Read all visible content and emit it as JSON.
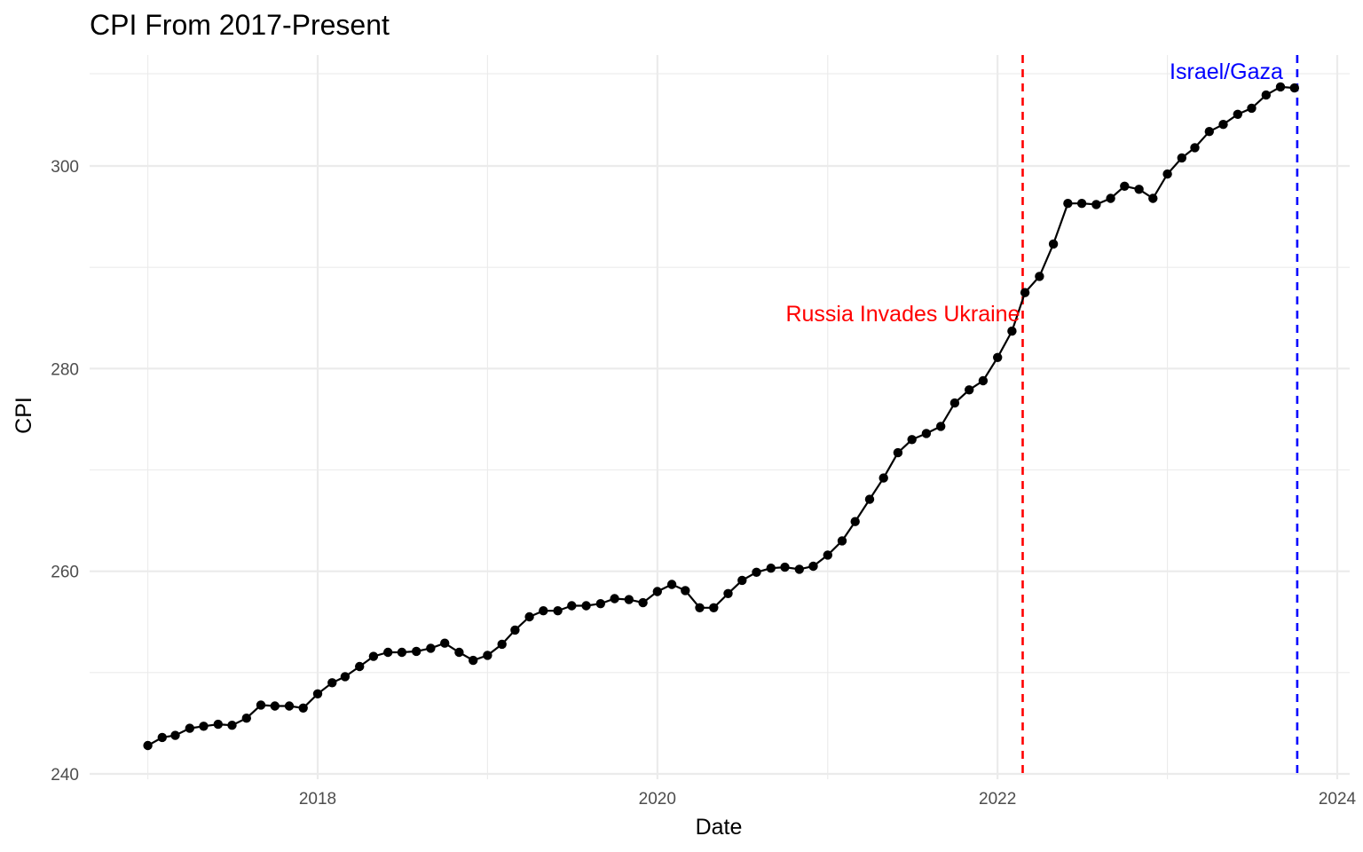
{
  "chart_data": {
    "type": "line",
    "title": "CPI From 2017-Present",
    "xlabel": "Date",
    "ylabel": "CPI",
    "xlim": [
      "2016-11-01",
      "2024-01-01"
    ],
    "ylim": [
      240,
      309
    ],
    "x_ticks": [
      "2018",
      "2020",
      "2022",
      "2024"
    ],
    "y_ticks": [
      240,
      260,
      280,
      300
    ],
    "grid": true,
    "legend": "none",
    "series": [
      {
        "color": "#000000",
        "x": [
          "2017-01",
          "2017-02",
          "2017-03",
          "2017-04",
          "2017-05",
          "2017-06",
          "2017-07",
          "2017-08",
          "2017-09",
          "2017-10",
          "2017-11",
          "2017-12",
          "2018-01",
          "2018-02",
          "2018-03",
          "2018-04",
          "2018-05",
          "2018-06",
          "2018-07",
          "2018-08",
          "2018-09",
          "2018-10",
          "2018-11",
          "2018-12",
          "2019-01",
          "2019-02",
          "2019-03",
          "2019-04",
          "2019-05",
          "2019-06",
          "2019-07",
          "2019-08",
          "2019-09",
          "2019-10",
          "2019-11",
          "2019-12",
          "2020-01",
          "2020-02",
          "2020-03",
          "2020-04",
          "2020-05",
          "2020-06",
          "2020-07",
          "2020-08",
          "2020-09",
          "2020-10",
          "2020-11",
          "2020-12",
          "2021-01",
          "2021-02",
          "2021-03",
          "2021-04",
          "2021-05",
          "2021-06",
          "2021-07",
          "2021-08",
          "2021-09",
          "2021-10",
          "2021-11",
          "2021-12",
          "2022-01",
          "2022-02",
          "2022-03",
          "2022-04",
          "2022-05",
          "2022-06",
          "2022-07",
          "2022-08",
          "2022-09",
          "2022-10",
          "2022-11",
          "2022-12",
          "2023-01",
          "2023-02",
          "2023-03",
          "2023-04",
          "2023-05",
          "2023-06",
          "2023-07",
          "2023-08",
          "2023-09",
          "2023-10"
        ],
        "values": [
          242.8,
          243.6,
          243.8,
          244.5,
          244.7,
          244.9,
          244.8,
          245.5,
          246.8,
          246.7,
          246.7,
          246.5,
          247.9,
          249.0,
          249.6,
          250.6,
          251.6,
          252.0,
          252.0,
          252.1,
          252.4,
          252.9,
          252.0,
          251.2,
          251.7,
          252.8,
          254.2,
          255.5,
          256.1,
          256.1,
          256.6,
          256.6,
          256.8,
          257.3,
          257.2,
          256.9,
          258.0,
          258.7,
          258.1,
          256.4,
          256.4,
          257.8,
          259.1,
          259.9,
          260.3,
          260.4,
          260.2,
          260.5,
          261.6,
          263.0,
          264.9,
          267.1,
          269.2,
          271.7,
          273.0,
          273.6,
          274.3,
          276.6,
          277.9,
          278.8,
          281.1,
          283.7,
          287.5,
          289.1,
          292.3,
          296.3,
          296.3,
          296.2,
          296.8,
          298.0,
          297.7,
          296.8,
          299.2,
          300.8,
          301.8,
          303.4,
          304.1,
          305.1,
          305.7,
          307.0,
          307.8,
          307.7
        ]
      }
    ],
    "annotations": [
      {
        "label": "Russia Invades Ukraine",
        "x": "2022-02-24",
        "color": "#ff0000",
        "line": "dashed"
      },
      {
        "label": "Israel/Gaza",
        "x": "2023-10-07",
        "color": "#0000ff",
        "line": "dashed"
      }
    ]
  }
}
